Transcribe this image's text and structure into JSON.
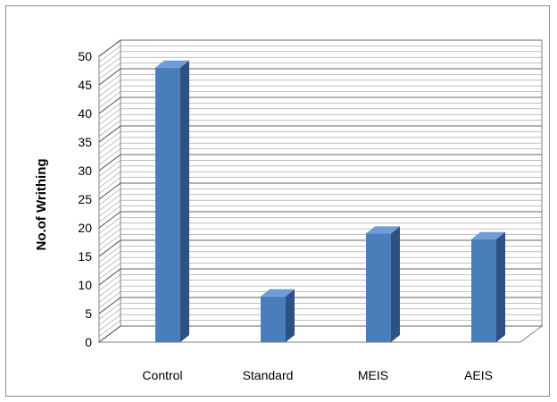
{
  "chart_data": {
    "type": "bar",
    "title": "",
    "xlabel": "",
    "ylabel": "No.of Writhing",
    "categories": [
      "Control",
      "Standard",
      "MEIS",
      "AEIS"
    ],
    "series": [
      {
        "values": [
          48,
          8,
          19,
          18
        ]
      }
    ],
    "ylim": [
      0,
      50
    ],
    "y_ticks": [
      "0",
      "5",
      "10",
      "15",
      "20",
      "25",
      "30",
      "35",
      "40",
      "45",
      "50"
    ],
    "grid": true,
    "legend": "none",
    "style": "3d-bar",
    "colors": {
      "bar_front": "#4a7ebb",
      "bar_side": "#2c5282",
      "bar_top": "#6f9bd6",
      "grid": "#7f7f7f"
    }
  }
}
